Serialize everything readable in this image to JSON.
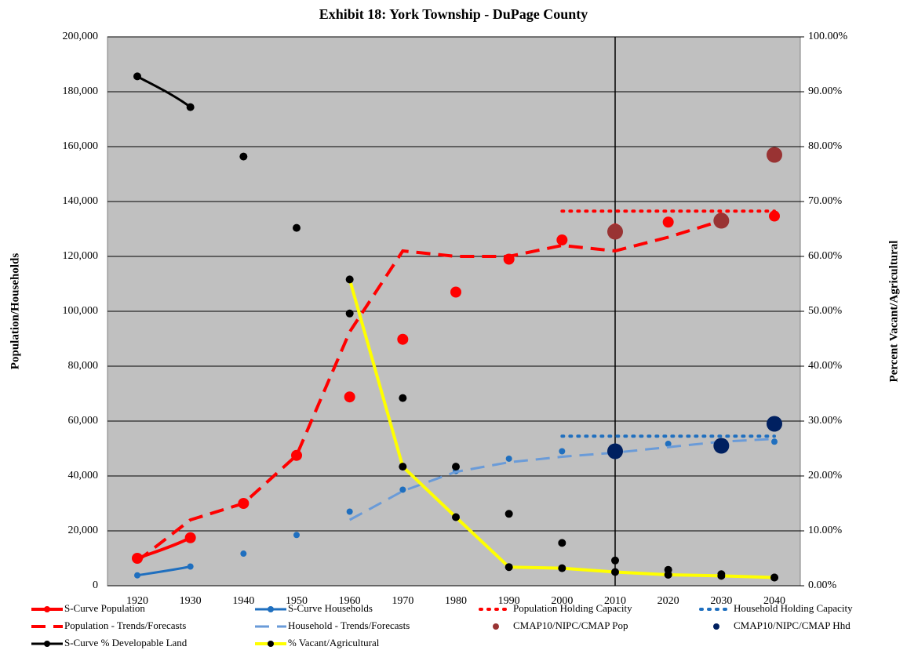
{
  "chart_data": {
    "type": "line",
    "title": "Exhibit 18:   York Township - DuPage County",
    "y_label": "Population/Households",
    "y2_label": "Percent Vacant/Agricultural",
    "categories": [
      "1920",
      "1930",
      "1940",
      "1950",
      "1960",
      "1970",
      "1980",
      "1990",
      "2000",
      "2010",
      "2020",
      "2030",
      "2040"
    ],
    "ylim": [
      0,
      200000
    ],
    "yticks": [
      0,
      {
        "value": 20000,
        "label": "20,000"
      },
      {
        "value": 40000,
        "label": "40,000"
      },
      {
        "value": 60000,
        "label": "60,000"
      },
      {
        "value": 80000,
        "label": "80,000"
      },
      {
        "value": 100000,
        "label": "100,000"
      },
      {
        "value": 120000,
        "label": "120,000"
      },
      {
        "value": 140000,
        "label": "140,000"
      },
      {
        "value": 160000,
        "label": "160,000"
      },
      {
        "value": 180000,
        "label": "180,000"
      },
      {
        "value": 200000,
        "label": "200,000"
      }
    ],
    "y2lim": [
      0,
      100
    ],
    "y2ticks": [
      {
        "value": 0,
        "label": "0.00%"
      },
      {
        "value": 10,
        "label": "10.00%"
      },
      {
        "value": 20,
        "label": "20.00%"
      },
      {
        "value": 30,
        "label": "30.00%"
      },
      {
        "value": 40,
        "label": "40.00%"
      },
      {
        "value": 50,
        "label": "50.00%"
      },
      {
        "value": 60,
        "label": "60.00%"
      },
      {
        "value": 70,
        "label": "70.00%"
      },
      {
        "value": 80,
        "label": "80.00%"
      },
      {
        "value": 90,
        "label": "90.00%"
      },
      {
        "value": 100,
        "label": "100.00%"
      }
    ],
    "grid": true,
    "reference_line": "2010",
    "legend": "bottom",
    "series": [
      {
        "name": "S-Curve Population",
        "color": "#ff0000",
        "style": "solid",
        "smooth": true,
        "width": 4,
        "marker": 7,
        "values": [
          10000,
          17500,
          30000,
          47500,
          68800,
          89800,
          107000,
          119000,
          126000,
          130000,
          132500,
          134000,
          134700
        ]
      },
      {
        "name": "S-Curve Households",
        "color": "#1f6fbf",
        "style": "solid",
        "smooth": true,
        "width": 3,
        "marker": 4,
        "values": [
          3800,
          7000,
          11700,
          18500,
          27000,
          35000,
          41800,
          46300,
          49000,
          50700,
          51700,
          52200,
          52500
        ]
      },
      {
        "name": "Population Holding Capacity",
        "color": "#ff0000",
        "style": "dotted",
        "width": 4,
        "marker": 0,
        "values": [
          null,
          null,
          null,
          null,
          null,
          null,
          null,
          null,
          136500,
          136500,
          136500,
          136500,
          136500
        ]
      },
      {
        "name": "Household Holding Capacity",
        "color": "#1f6fbf",
        "style": "dotted",
        "width": 4,
        "marker": 0,
        "values": [
          null,
          null,
          null,
          null,
          null,
          null,
          null,
          null,
          54500,
          54500,
          54500,
          54500,
          54500
        ]
      },
      {
        "name": "Population - Trends/Forecasts",
        "color": "#ff0000",
        "style": "dashed",
        "width": 4,
        "marker": 0,
        "values": [
          9000,
          24000,
          30000,
          47500,
          92500,
          122000,
          120000,
          120000,
          124000,
          122000,
          127000,
          133000,
          null
        ]
      },
      {
        "name": "Household - Trends/Forecasts",
        "color": "#6a9bd8",
        "style": "dashed",
        "width": 3,
        "marker": 0,
        "values": [
          null,
          null,
          null,
          null,
          24000,
          34500,
          41500,
          45000,
          47000,
          48500,
          50500,
          52500,
          53500
        ]
      },
      {
        "name": "CMAP10/NIPC/CMAP Pop",
        "color": "#993333",
        "style": "none",
        "width": 0,
        "marker": 10,
        "values": [
          null,
          null,
          null,
          null,
          null,
          null,
          null,
          null,
          null,
          129000,
          null,
          133000,
          157000
        ]
      },
      {
        "name": "CMAP10/NIPC/CMAP Hhd",
        "color": "#002060",
        "style": "none",
        "width": 0,
        "marker": 10,
        "values": [
          null,
          null,
          null,
          null,
          null,
          null,
          null,
          null,
          null,
          49000,
          null,
          51000,
          59000
        ]
      },
      {
        "name": "S-Curve % Developable Land",
        "color": "#000000",
        "style": "solid",
        "smooth": true,
        "width": 3,
        "marker": 5,
        "axis": "y2",
        "values": [
          92.8,
          87.2,
          78.2,
          65.2,
          49.6,
          34.2,
          21.7,
          13.1,
          7.8,
          4.6,
          2.9,
          2.1,
          1.5
        ]
      },
      {
        "name": "% Vacant/Agricultural",
        "color": "#ffff00",
        "marker_color": "#000000",
        "style": "solid",
        "width": 4,
        "marker": 5,
        "axis": "y2",
        "values": [
          null,
          null,
          null,
          null,
          55.8,
          21.7,
          12.5,
          3.4,
          3.2,
          2.5,
          2.0,
          1.8,
          1.5
        ]
      }
    ]
  }
}
